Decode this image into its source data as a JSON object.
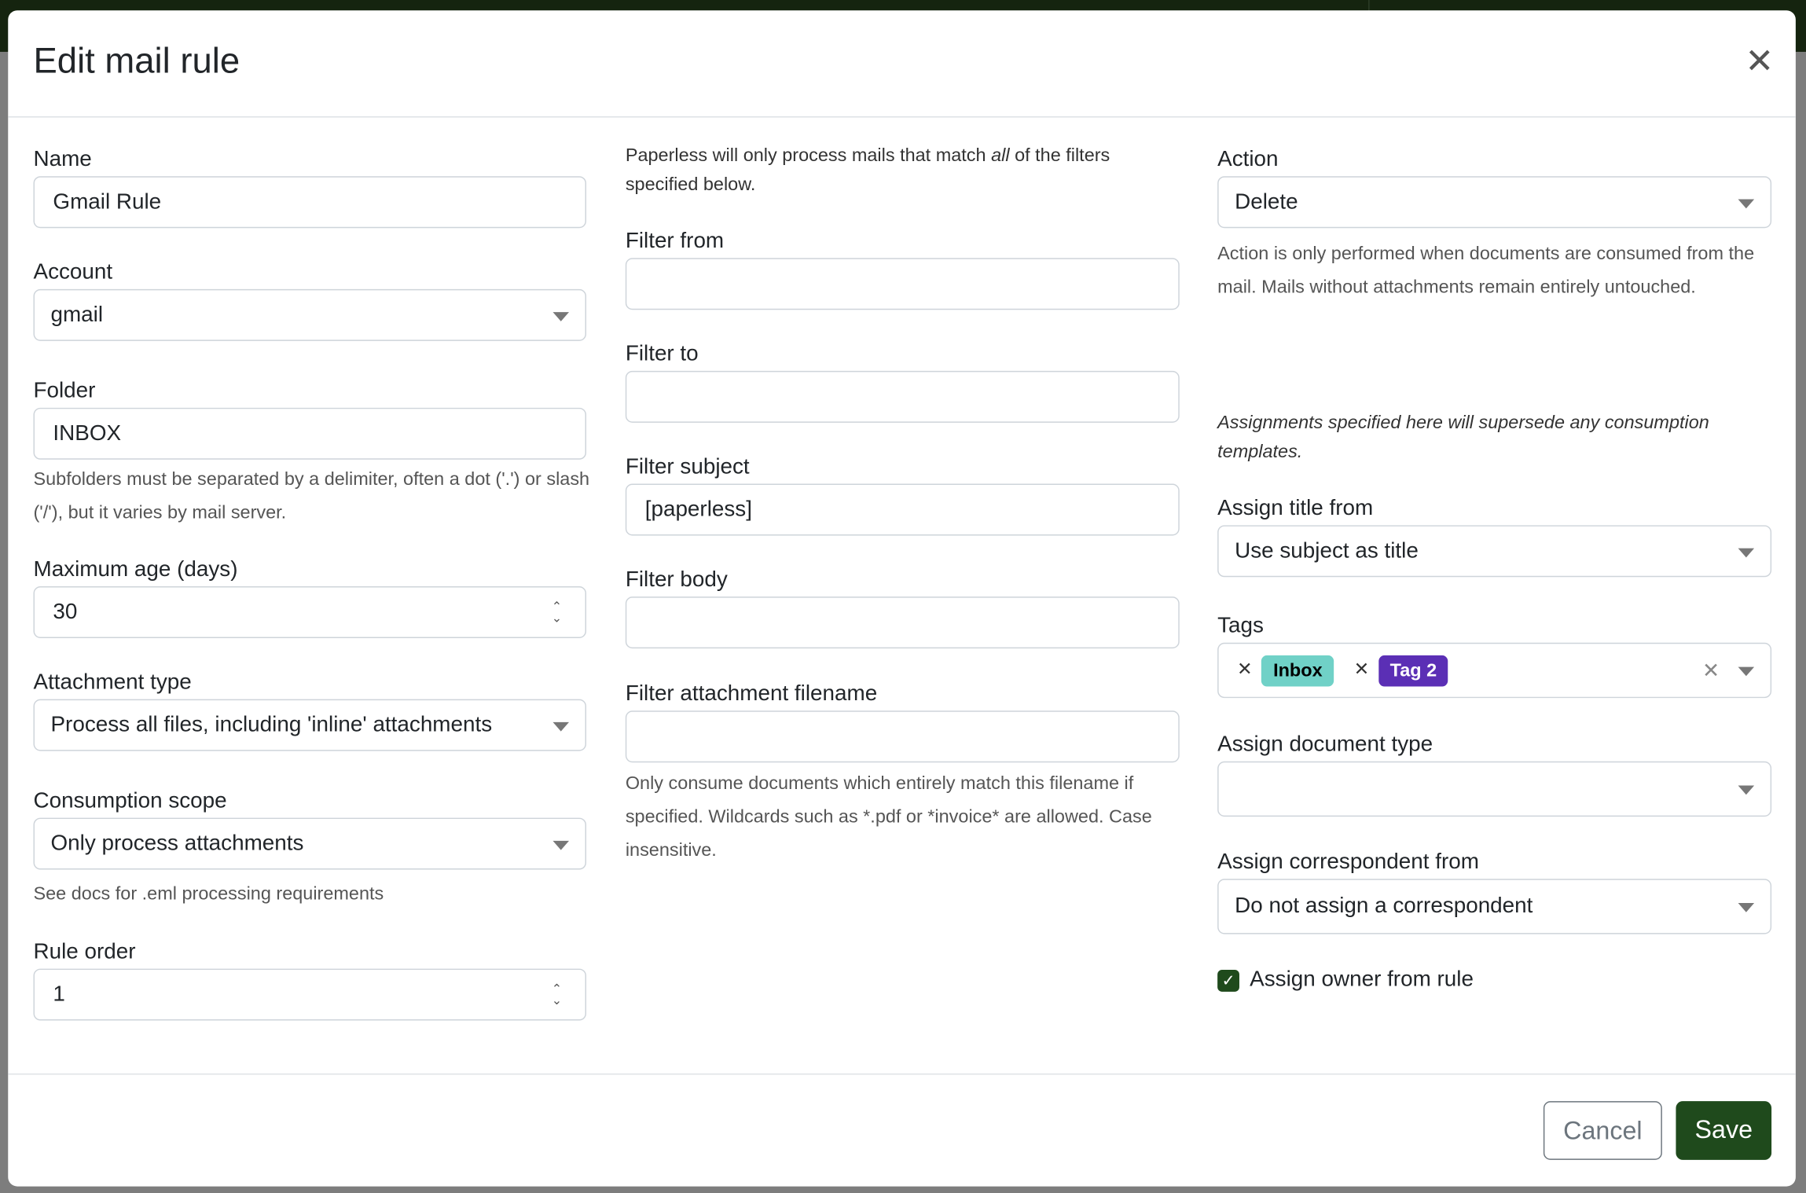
{
  "dialog": {
    "title": "Edit mail rule",
    "close_icon": "close-icon"
  },
  "left": {
    "name_label": "Name",
    "name_value": "Gmail Rule",
    "account_label": "Account",
    "account_value": "gmail",
    "folder_label": "Folder",
    "folder_value": "INBOX",
    "folder_help": "Subfolders must be separated by a delimiter, often a dot ('.') or slash ('/'), but it varies by mail server.",
    "max_age_label": "Maximum age (days)",
    "max_age_value": "30",
    "attachment_type_label": "Attachment type",
    "attachment_type_value": "Process all files, including 'inline' attachments",
    "scope_label": "Consumption scope",
    "scope_value": "Only process attachments",
    "scope_help": "See docs for .eml processing requirements",
    "order_label": "Rule order",
    "order_value": "1"
  },
  "middle": {
    "intro_pre": "Paperless will only process mails that match ",
    "intro_em": "all",
    "intro_post": " of the filters specified below.",
    "filter_from_label": "Filter from",
    "filter_from_value": "",
    "filter_to_label": "Filter to",
    "filter_to_value": "",
    "filter_subject_label": "Filter subject",
    "filter_subject_value": "[paperless]",
    "filter_body_label": "Filter body",
    "filter_body_value": "",
    "filter_attachment_label": "Filter attachment filename",
    "filter_attachment_value": "",
    "filter_attachment_help": "Only consume documents which entirely match this filename if specified. Wildcards such as *.pdf or *invoice* are allowed. Case insensitive."
  },
  "right": {
    "action_label": "Action",
    "action_value": "Delete",
    "action_help": "Action is only performed when documents are consumed from the mail. Mails without attachments remain entirely untouched.",
    "assign_note": "Assignments specified here will supersede any consumption templates.",
    "title_from_label": "Assign title from",
    "title_from_value": "Use subject as title",
    "tags_label": "Tags",
    "tags": [
      {
        "label": "Inbox",
        "bg": "#70d1c7",
        "fg": "#000000"
      },
      {
        "label": "Tag 2",
        "bg": "#5b2fb5",
        "fg": "#ffffff"
      }
    ],
    "doc_type_label": "Assign document type",
    "doc_type_value": "",
    "correspondent_label": "Assign correspondent from",
    "correspondent_value": "Do not assign a correspondent",
    "owner_label": "Assign owner from rule",
    "owner_checked": true
  },
  "footer": {
    "cancel": "Cancel",
    "save": "Save"
  },
  "colors": {
    "primary": "#1f4a1c",
    "backdrop_top": "#15240f"
  }
}
